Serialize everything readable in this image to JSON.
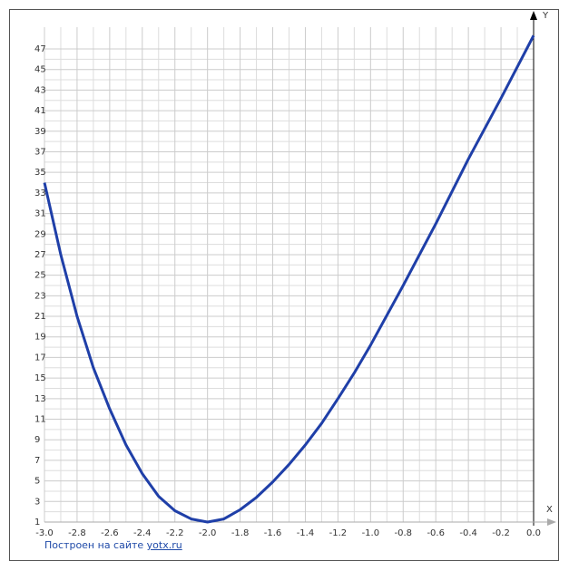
{
  "chart_data": {
    "type": "line",
    "xlabel": "X",
    "ylabel": "Y",
    "x": [
      -3.0,
      -2.9,
      -2.8,
      -2.7,
      -2.6,
      -2.5,
      -2.4,
      -2.3,
      -2.2,
      -2.1,
      -2.0,
      -1.9,
      -1.8,
      -1.7,
      -1.6,
      -1.5,
      -1.4,
      -1.3,
      -1.2,
      -1.1,
      -1.0,
      -0.8,
      -0.6,
      -0.4,
      -0.2,
      0.0
    ],
    "series": [
      {
        "color": "#1f3fa8",
        "values": [
          34,
          27,
          21,
          16,
          12,
          8.5,
          5.7,
          3.5,
          2.1,
          1.3,
          1,
          1.3,
          2.2,
          3.4,
          4.9,
          6.6,
          8.5,
          10.6,
          13,
          15.5,
          18.2,
          24,
          30,
          36.3,
          42.2,
          48.3
        ]
      }
    ],
    "xlim": [
      -3.0,
      0.0
    ],
    "ylim": [
      1,
      47
    ],
    "xticks": [
      {
        "value": -3.0,
        "label": "-3.0"
      },
      -2.8,
      -2.6,
      -2.4,
      -2.2,
      {
        "value": -2.0,
        "label": "-2.0"
      },
      -1.8,
      -1.6,
      -1.4,
      -1.2,
      {
        "value": -1.0,
        "label": "-1.0"
      },
      -0.8,
      -0.6,
      -0.4,
      -0.2,
      {
        "value": 0.0,
        "label": "0.0"
      }
    ],
    "yticks": [
      1,
      3,
      5,
      7,
      9,
      11,
      13,
      15,
      17,
      19,
      21,
      23,
      25,
      27,
      29,
      31,
      33,
      35,
      37,
      39,
      41,
      43,
      45,
      47
    ],
    "grid": true
  },
  "footer": {
    "text": "Построен на сайте",
    "link": "yotx.ru"
  }
}
